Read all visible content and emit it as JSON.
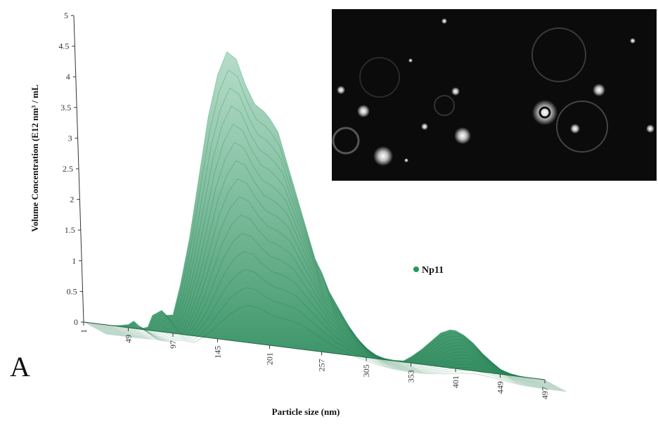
{
  "panel_label": "A",
  "chart_data": {
    "type": "area",
    "title": "",
    "xlabel": "Particle size (nm)",
    "ylabel": "Volume Concentration (E12 nm³ / mL",
    "x": [
      1,
      10,
      20,
      30,
      40,
      49,
      55,
      60,
      65,
      70,
      75,
      80,
      85,
      90,
      97,
      105,
      115,
      125,
      135,
      145,
      155,
      165,
      175,
      185,
      195,
      201,
      210,
      220,
      230,
      240,
      250,
      257,
      265,
      275,
      285,
      295,
      305,
      315,
      325,
      335,
      345,
      353,
      365,
      375,
      385,
      395,
      401,
      410,
      420,
      430,
      440,
      449,
      460,
      470,
      480,
      490,
      497
    ],
    "x_tick_labels": [
      "1",
      "49",
      "97",
      "145",
      "201",
      "257",
      "305",
      "353",
      "401",
      "449",
      "497"
    ],
    "x_tick_values": [
      1,
      49,
      97,
      145,
      201,
      257,
      305,
      353,
      401,
      449,
      497
    ],
    "ylim": [
      0,
      5
    ],
    "y_tick_labels": [
      "0",
      "0.5",
      "1",
      "1.5",
      "2",
      "2.5",
      "3",
      "3.5",
      "4",
      "4.5",
      "5"
    ],
    "series": [
      {
        "name": "Np11",
        "color": "#1f9a5c",
        "values": [
          0,
          0,
          0,
          0,
          0.02,
          0.05,
          0.12,
          0.04,
          0.02,
          0.05,
          0.25,
          0.3,
          0.35,
          0.28,
          0.3,
          0.8,
          1.6,
          2.6,
          3.6,
          4.3,
          4.7,
          4.6,
          4.2,
          3.9,
          3.8,
          3.7,
          3.5,
          3.0,
          2.5,
          2.0,
          1.5,
          1.3,
          1.0,
          0.75,
          0.5,
          0.3,
          0.15,
          0.06,
          0.02,
          0.01,
          0.02,
          0.1,
          0.25,
          0.4,
          0.55,
          0.62,
          0.62,
          0.56,
          0.45,
          0.3,
          0.18,
          0.08,
          0.03,
          0.01,
          0,
          0,
          0
        ]
      }
    ],
    "legend": {
      "position": "right",
      "label": "Np11"
    },
    "grid": false
  },
  "inset": {
    "type": "microscopy-image",
    "caption": ""
  }
}
